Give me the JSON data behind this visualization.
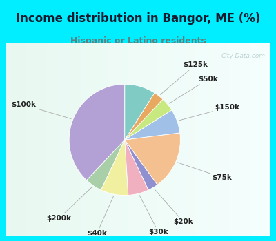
{
  "title": "Income distribution in Bangor, ME (%)",
  "subtitle": "Hispanic or Latino residents",
  "title_color": "#1a1a2e",
  "subtitle_color": "#5f7f7f",
  "bg_color_outer": "#00eeff",
  "watermark": "City-Data.com",
  "slices": [
    {
      "label": "$100k",
      "value": 38,
      "color": "#b3a0d4"
    },
    {
      "label": "$200k",
      "value": 5,
      "color": "#a8cfa8"
    },
    {
      "label": "$40k",
      "value": 8,
      "color": "#f0f0a0"
    },
    {
      "label": "$30k",
      "value": 6,
      "color": "#f0b0c0"
    },
    {
      "label": "$20k",
      "value": 3,
      "color": "#9090d0"
    },
    {
      "label": "$75k",
      "value": 17,
      "color": "#f5c090"
    },
    {
      "label": "$150k",
      "value": 7,
      "color": "#a0c0e8"
    },
    {
      "label": "$50k",
      "value": 4,
      "color": "#c8e880"
    },
    {
      "label": "$125k",
      "value": 3,
      "color": "#e8a860"
    },
    {
      "label": "",
      "value": 9,
      "color": "#80cbc4"
    }
  ],
  "label_fontsize": 7.5,
  "title_fontsize": 12,
  "subtitle_fontsize": 9,
  "startangle": 90
}
